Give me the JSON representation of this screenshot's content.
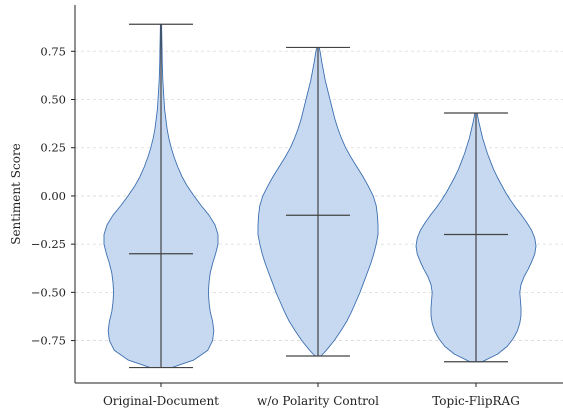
{
  "chart_data": {
    "type": "violin",
    "title": "",
    "xlabel": "",
    "ylabel": "Sentiment Score",
    "ylim": [
      -0.97,
      0.99
    ],
    "yticks": [
      -0.75,
      -0.5,
      -0.25,
      0.0,
      0.25,
      0.5,
      0.75
    ],
    "ytick_labels": [
      "−0.75",
      "−0.50",
      "−0.25",
      "0.00",
      "0.25",
      "0.50",
      "0.75"
    ],
    "grid": "horizontal-dashed",
    "fill_color": "#c6d9f0",
    "edge_color": "#3d6fb0",
    "line_color": "#444444",
    "categories": [
      "Original-Document",
      "w/o Polarity Control",
      "Topic-FlipRAG"
    ],
    "series": [
      {
        "min": -0.89,
        "max": 0.89,
        "median": -0.3,
        "density_y": [
          -0.89,
          -0.85,
          -0.8,
          -0.75,
          -0.7,
          -0.65,
          -0.6,
          -0.55,
          -0.5,
          -0.45,
          -0.4,
          -0.35,
          -0.3,
          -0.25,
          -0.2,
          -0.15,
          -0.1,
          -0.05,
          0.0,
          0.05,
          0.1,
          0.15,
          0.2,
          0.25,
          0.3,
          0.35,
          0.4,
          0.45,
          0.5,
          0.55,
          0.6,
          0.65,
          0.7,
          0.75,
          0.8,
          0.85,
          0.89
        ],
        "density_w": [
          0.18,
          0.55,
          0.78,
          0.86,
          0.88,
          0.86,
          0.82,
          0.8,
          0.79,
          0.8,
          0.82,
          0.86,
          0.91,
          0.95,
          0.95,
          0.9,
          0.8,
          0.67,
          0.55,
          0.44,
          0.35,
          0.28,
          0.22,
          0.17,
          0.13,
          0.1,
          0.08,
          0.06,
          0.05,
          0.04,
          0.03,
          0.025,
          0.02,
          0.018,
          0.015,
          0.012,
          0.01
        ]
      },
      {
        "min": -0.83,
        "max": 0.77,
        "median": -0.1,
        "density_y": [
          -0.83,
          -0.8,
          -0.75,
          -0.7,
          -0.65,
          -0.6,
          -0.55,
          -0.5,
          -0.45,
          -0.4,
          -0.35,
          -0.3,
          -0.25,
          -0.2,
          -0.15,
          -0.1,
          -0.05,
          0.0,
          0.05,
          0.1,
          0.15,
          0.2,
          0.25,
          0.3,
          0.35,
          0.4,
          0.45,
          0.5,
          0.55,
          0.6,
          0.65,
          0.7,
          0.74,
          0.77
        ],
        "density_w": [
          0.05,
          0.14,
          0.27,
          0.38,
          0.48,
          0.56,
          0.63,
          0.7,
          0.76,
          0.82,
          0.88,
          0.93,
          0.97,
          1.0,
          1.0,
          0.99,
          0.97,
          0.92,
          0.84,
          0.75,
          0.65,
          0.55,
          0.46,
          0.39,
          0.33,
          0.28,
          0.24,
          0.2,
          0.16,
          0.12,
          0.09,
          0.06,
          0.04,
          0.02
        ]
      },
      {
        "min": -0.86,
        "max": 0.43,
        "median": -0.2,
        "density_y": [
          -0.86,
          -0.82,
          -0.78,
          -0.74,
          -0.7,
          -0.66,
          -0.62,
          -0.58,
          -0.54,
          -0.5,
          -0.46,
          -0.42,
          -0.38,
          -0.34,
          -0.3,
          -0.26,
          -0.22,
          -0.18,
          -0.14,
          -0.1,
          -0.06,
          -0.02,
          0.02,
          0.06,
          0.1,
          0.14,
          0.18,
          0.22,
          0.26,
          0.3,
          0.34,
          0.38,
          0.41,
          0.43
        ],
        "density_w": [
          0.1,
          0.36,
          0.52,
          0.62,
          0.69,
          0.73,
          0.75,
          0.75,
          0.74,
          0.73,
          0.75,
          0.8,
          0.87,
          0.93,
          0.98,
          1.0,
          0.98,
          0.93,
          0.85,
          0.76,
          0.66,
          0.57,
          0.49,
          0.42,
          0.35,
          0.29,
          0.24,
          0.19,
          0.15,
          0.11,
          0.08,
          0.05,
          0.03,
          0.02
        ]
      }
    ]
  }
}
